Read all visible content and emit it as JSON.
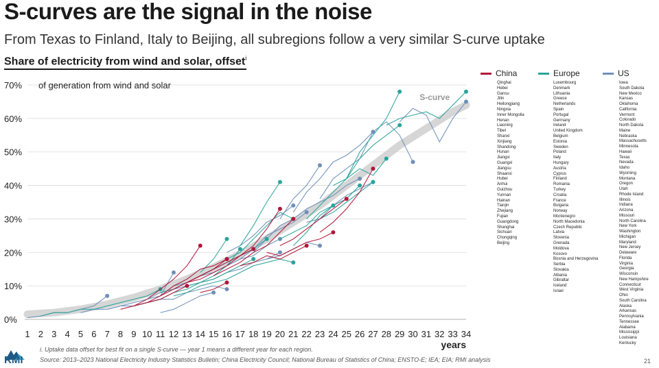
{
  "title": "S-curves are the signal in the noise",
  "subtitle": "From Texas to Finland, Italy to Beijing, all subregions follow a very similar S-curve uptake",
  "chart_heading": "Share of electricity from wind and solar, offset",
  "chart_heading_sup": "i",
  "footnote": "i. Uptake data offset for best fit on a single S-curve — year 1 means a different year for each region.",
  "source": "Source: 2013–2023 National Electricity Industry Statistics Bulletin; China Electricity Council; National Bureau of Statistics of China; ENSTO-E; IEA; EIA; RMI analysis",
  "page_number": "21",
  "logo_text": "RMI",
  "colors": {
    "china": "#b0173a",
    "europe": "#2aa39a",
    "us": "#6f8fb8",
    "scurve": "#cfcfcf",
    "grid": "#d9d9d9"
  },
  "legend": {
    "china": {
      "label": "China",
      "items": [
        "Qinghai",
        "Hebei",
        "Gansu",
        "Jilin",
        "Heilongjiang",
        "Ningxia",
        "Inner Mongolia",
        "Henan",
        "Liaoning",
        "Tibet",
        "Shanxi",
        "Xinjiang",
        "Shandong",
        "Hunan",
        "Jiangxi",
        "Guangxi",
        "Jiangsu",
        "Shaanxi",
        "Hubei",
        "Anhui",
        "Guizhou",
        "Yunnan",
        "Hainan",
        "Tianjin",
        "Zhejiang",
        "Fujian",
        "Guangdong",
        "Shanghai",
        "Sichuan",
        "Chongqing",
        "Beijing"
      ]
    },
    "europe": {
      "label": "Europe",
      "items": [
        "Luxembourg",
        "Denmark",
        "Lithuania",
        "Greece",
        "Netherlands",
        "Spain",
        "Portugal",
        "Germany",
        "Ireland",
        "United Kingdom",
        "Belgium",
        "Estonia",
        "Sweden",
        "Poland",
        "Italy",
        "Hungary",
        "Austria",
        "Cyprus",
        "Finland",
        "Romania",
        "Turkey",
        "Croatia",
        "France",
        "Bulgaria",
        "Norway",
        "Montenegro",
        "North Macedonia",
        "Czech Republic",
        "Latvia",
        "Slovenia",
        "Grenada",
        "Moldova",
        "Kosovo",
        "Bosnia and Herzegovina",
        "Serbia",
        "Slovakia",
        "Albania",
        "Gibraltar",
        "Iceland",
        "Israel"
      ]
    },
    "us": {
      "label": "US",
      "items": [
        "Iowa",
        "South Dakota",
        "New Mexico",
        "Kansas",
        "Oklahoma",
        "California",
        "Vermont",
        "Colorado",
        "North Dakota",
        "Maine",
        "Nebraska",
        "Massachusetts",
        "Minnesota",
        "Hawaii",
        "Texas",
        "Nevada",
        "Idaho",
        "Wyoming",
        "Montana",
        "Oregon",
        "Utah",
        "Rhode Island",
        "Illinois",
        "Indiana",
        "Arizona",
        "Missouri",
        "North Carolina",
        "New York",
        "Washington",
        "Michigan",
        "Maryland",
        "New Jersey",
        "Delaware",
        "Florida",
        "Virginia",
        "Georgia",
        "Wisconsin",
        "New Hampshire",
        "Connecticut",
        "West Virginia",
        "Ohio",
        "South Carolina",
        "Alaska",
        "Arkansas",
        "Pennsylvania",
        "Tennessee",
        "Alabama",
        "Mississippi",
        "Louisiana",
        "Kentucky"
      ]
    }
  },
  "chart_data": {
    "type": "line",
    "ylabel": "of generation from wind and solar",
    "xlabel": "years",
    "xlim": [
      1,
      34
    ],
    "ylim": [
      0,
      70
    ],
    "x_ticks": [
      1,
      2,
      3,
      4,
      5,
      6,
      7,
      8,
      9,
      10,
      11,
      12,
      13,
      14,
      15,
      16,
      17,
      18,
      19,
      20,
      21,
      22,
      23,
      24,
      25,
      26,
      27,
      28,
      29,
      30,
      31,
      32,
      33,
      34
    ],
    "y_ticks": [
      "0%",
      "10%",
      "20%",
      "30%",
      "40%",
      "50%",
      "60%",
      "70%"
    ],
    "y_tick_values": [
      0,
      10,
      20,
      30,
      40,
      50,
      60,
      70
    ],
    "grid": true,
    "annotation": "S-curve",
    "s_curve": {
      "x": [
        1,
        3,
        5,
        7,
        9,
        11,
        13,
        15,
        17,
        19,
        21,
        23,
        25,
        27,
        29,
        31,
        33,
        34
      ],
      "y": [
        1.5,
        2,
        3,
        4.5,
        6.5,
        9,
        12,
        15.5,
        19.5,
        24,
        29,
        34,
        40,
        46,
        52,
        57,
        62,
        64
      ]
    },
    "series": [
      {
        "group": "china",
        "x": [
          9,
          10,
          11,
          12,
          13,
          14
        ],
        "y": [
          4,
          6,
          9,
          12,
          16,
          22
        ]
      },
      {
        "group": "china",
        "x": [
          10,
          11,
          12,
          13,
          14,
          15,
          16,
          17,
          18
        ],
        "y": [
          5,
          7,
          9,
          11,
          13,
          15,
          17,
          19,
          21
        ]
      },
      {
        "group": "china",
        "x": [
          11,
          12,
          13,
          14,
          15,
          16
        ],
        "y": [
          7,
          10,
          12,
          15,
          16,
          18
        ]
      },
      {
        "group": "china",
        "x": [
          12,
          13,
          14,
          15,
          16
        ],
        "y": [
          9,
          11,
          13,
          15,
          18
        ]
      },
      {
        "group": "china",
        "x": [
          13,
          14,
          15,
          16,
          17,
          18,
          19,
          20
        ],
        "y": [
          11,
          12,
          14,
          16,
          19,
          22,
          27,
          33
        ]
      },
      {
        "group": "china",
        "x": [
          15,
          16,
          17,
          18,
          19,
          20,
          21
        ],
        "y": [
          13,
          15,
          17,
          20,
          22,
          26,
          30
        ]
      },
      {
        "group": "china",
        "x": [
          17,
          18,
          19,
          20,
          21,
          22
        ],
        "y": [
          16,
          17,
          19,
          18,
          20,
          22
        ]
      },
      {
        "group": "china",
        "x": [
          20,
          21,
          22,
          23,
          24,
          25
        ],
        "y": [
          22,
          24,
          27,
          30,
          33,
          36
        ]
      },
      {
        "group": "china",
        "x": [
          23,
          24,
          25,
          26,
          27
        ],
        "y": [
          26,
          29,
          33,
          38,
          45
        ]
      },
      {
        "group": "china",
        "x": [
          8,
          9,
          10,
          11,
          12,
          13
        ],
        "y": [
          3,
          4,
          5,
          6,
          8,
          10
        ]
      },
      {
        "group": "china",
        "x": [
          14,
          15,
          16
        ],
        "y": [
          8,
          9,
          11
        ]
      },
      {
        "group": "china",
        "x": [
          19,
          20,
          21,
          22,
          23,
          24
        ],
        "y": [
          20,
          19,
          21,
          23,
          24,
          26
        ]
      },
      {
        "group": "europe",
        "x": [
          25,
          26,
          27,
          28,
          29
        ],
        "y": [
          42,
          50,
          55,
          60,
          68
        ]
      },
      {
        "group": "europe",
        "x": [
          24,
          25,
          26,
          27,
          28,
          29
        ],
        "y": [
          40,
          42,
          48,
          52,
          55,
          58
        ]
      },
      {
        "group": "europe",
        "x": [
          22,
          23,
          24,
          25,
          26,
          27,
          28
        ],
        "y": [
          30,
          34,
          38,
          42,
          45,
          43,
          48
        ]
      },
      {
        "group": "europe",
        "x": [
          17,
          18,
          19,
          20
        ],
        "y": [
          22,
          28,
          35,
          41
        ]
      },
      {
        "group": "europe",
        "x": [
          16,
          17,
          18,
          19,
          20,
          21
        ],
        "y": [
          18,
          20,
          24,
          28,
          32,
          30
        ]
      },
      {
        "group": "europe",
        "x": [
          14,
          15,
          16
        ],
        "y": [
          14,
          18,
          24
        ]
      },
      {
        "group": "europe",
        "x": [
          11,
          12,
          13,
          14,
          15,
          16,
          17,
          18,
          19
        ],
        "y": [
          8,
          9,
          11,
          13,
          15,
          17,
          19,
          21,
          24
        ]
      },
      {
        "group": "europe",
        "x": [
          20,
          21,
          22,
          23,
          24,
          25,
          26
        ],
        "y": [
          24,
          26,
          28,
          32,
          34,
          36,
          40
        ]
      },
      {
        "group": "europe",
        "x": [
          12,
          13,
          14,
          15,
          16,
          17,
          18,
          19,
          20,
          21
        ],
        "y": [
          7,
          8,
          10,
          11,
          12,
          14,
          16,
          17,
          18,
          17
        ]
      },
      {
        "group": "europe",
        "x": [
          23,
          24,
          25,
          26,
          27
        ],
        "y": [
          30,
          32,
          35,
          38,
          41
        ]
      },
      {
        "group": "europe",
        "x": [
          21,
          22,
          23,
          24
        ],
        "y": [
          22,
          26,
          31,
          34
        ]
      },
      {
        "group": "europe",
        "x": [
          9,
          10,
          11,
          12,
          13,
          14,
          15,
          16,
          17,
          18
        ],
        "y": [
          4,
          5,
          6,
          8,
          9,
          11,
          12,
          14,
          16,
          18
        ]
      },
      {
        "group": "europe",
        "x": [
          28,
          29,
          30,
          31,
          32,
          33,
          34
        ],
        "y": [
          58,
          60,
          61,
          62,
          60,
          64,
          68
        ]
      },
      {
        "group": "europe",
        "x": [
          2,
          3,
          4,
          5,
          6,
          7,
          8,
          9,
          10,
          11
        ],
        "y": [
          1,
          2,
          2,
          3,
          3,
          4,
          5,
          6,
          7,
          9
        ]
      },
      {
        "group": "europe",
        "x": [
          13,
          14,
          15,
          16,
          17
        ],
        "y": [
          10,
          11,
          13,
          16,
          21
        ]
      },
      {
        "group": "us",
        "x": [
          29,
          30,
          31,
          32,
          33,
          34
        ],
        "y": [
          59,
          63,
          61,
          53,
          60,
          65
        ]
      },
      {
        "group": "us",
        "x": [
          23,
          24,
          25,
          26,
          27,
          28,
          29,
          30
        ],
        "y": [
          36,
          42,
          45,
          48,
          56,
          59,
          55,
          47
        ]
      },
      {
        "group": "us",
        "x": [
          21,
          22,
          23,
          24,
          25,
          26,
          27
        ],
        "y": [
          32,
          38,
          42,
          47,
          49,
          52,
          56
        ]
      },
      {
        "group": "us",
        "x": [
          20,
          21,
          22,
          23
        ],
        "y": [
          30,
          36,
          40,
          46
        ]
      },
      {
        "group": "us",
        "x": [
          18,
          19,
          20,
          21,
          22,
          23,
          24,
          25,
          26
        ],
        "y": [
          20,
          24,
          28,
          30,
          33,
          35,
          37,
          40,
          42
        ]
      },
      {
        "group": "us",
        "x": [
          15,
          16,
          17,
          18,
          19,
          20,
          21,
          22
        ],
        "y": [
          14,
          16,
          18,
          21,
          25,
          27,
          29,
          32
        ]
      },
      {
        "group": "us",
        "x": [
          12,
          13,
          14,
          15,
          16,
          17,
          18,
          19,
          20
        ],
        "y": [
          10,
          11,
          13,
          14,
          16,
          18,
          19,
          22,
          24
        ]
      },
      {
        "group": "us",
        "x": [
          10,
          11,
          12,
          13,
          14,
          15,
          16,
          17,
          18,
          19,
          20
        ],
        "y": [
          6,
          8,
          9,
          10,
          11,
          12,
          14,
          15,
          17,
          18,
          20
        ]
      },
      {
        "group": "us",
        "x": [
          1,
          2,
          3,
          4,
          5,
          6,
          7
        ],
        "y": [
          0.5,
          1,
          2,
          2,
          3,
          4,
          7
        ]
      },
      {
        "group": "us",
        "x": [
          5,
          6,
          7,
          8,
          9,
          10,
          11,
          12
        ],
        "y": [
          2,
          3,
          3,
          4,
          5,
          6,
          7,
          14
        ]
      },
      {
        "group": "us",
        "x": [
          7,
          8,
          9,
          10,
          11,
          12,
          13,
          14,
          15,
          16
        ],
        "y": [
          3,
          4,
          4,
          5,
          6,
          6,
          8,
          9,
          10,
          9
        ]
      },
      {
        "group": "us",
        "x": [
          19,
          20,
          21,
          22,
          23
        ],
        "y": [
          18,
          19,
          21,
          23,
          22
        ]
      },
      {
        "group": "us",
        "x": [
          22,
          23,
          24,
          25,
          26,
          27
        ],
        "y": [
          29,
          30,
          34,
          37,
          39,
          41
        ]
      },
      {
        "group": "us",
        "x": [
          11,
          12,
          13,
          14,
          15
        ],
        "y": [
          2,
          3,
          5,
          7,
          8
        ]
      },
      {
        "group": "us",
        "x": [
          16,
          17,
          18,
          19,
          20,
          21
        ],
        "y": [
          20,
          22,
          25,
          29,
          31,
          34
        ]
      }
    ]
  }
}
